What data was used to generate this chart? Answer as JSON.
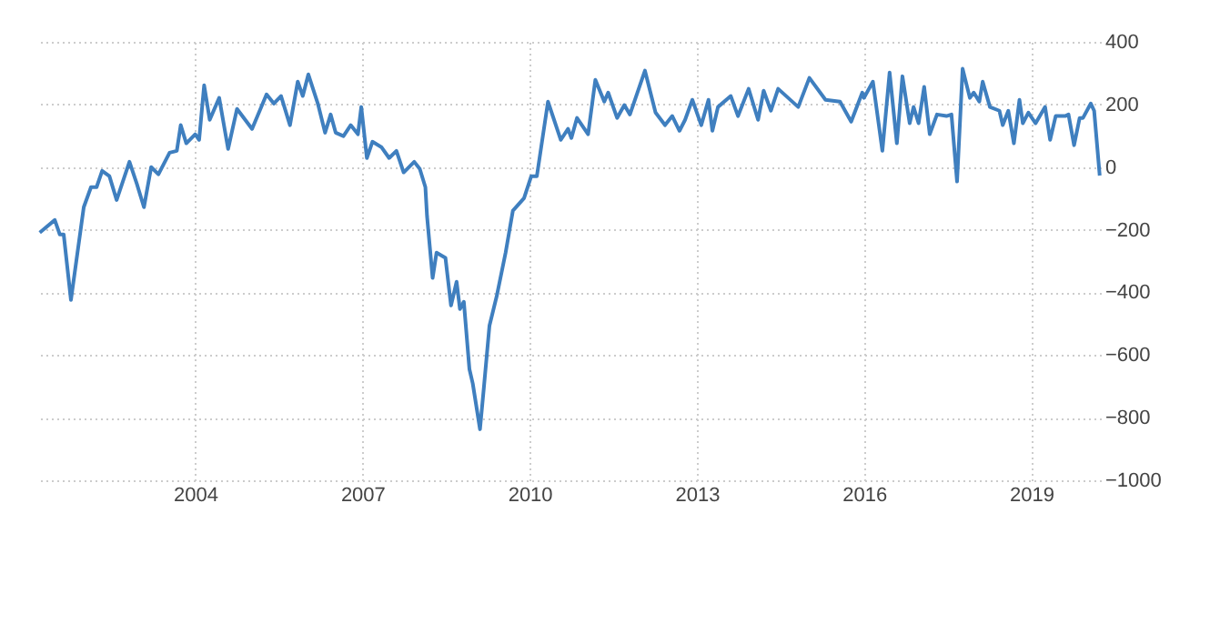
{
  "chart_data": {
    "type": "line",
    "xlim": [
      2001.15,
      2020.25
    ],
    "xticks": [
      2004,
      2007,
      2010,
      2013,
      2016,
      2019
    ],
    "ylim": [
      -1000,
      400
    ],
    "yticks": [
      -1000,
      -800,
      -600,
      -400,
      -200,
      0,
      200,
      400
    ],
    "grid": true,
    "legend": false,
    "marker": "none",
    "line_style": "solid",
    "series": [
      {
        "color": "#3f7fbf",
        "x": [
          2001.21,
          2001.48,
          2001.57,
          2001.64,
          2001.77,
          2002.0,
          2002.13,
          2002.23,
          2002.33,
          2002.46,
          2002.59,
          2002.82,
          2002.95,
          2003.08,
          2003.21,
          2003.34,
          2003.54,
          2003.67,
          2003.74,
          2003.84,
          2004.0,
          2004.07,
          2004.16,
          2004.26,
          2004.43,
          2004.59,
          2004.75,
          2005.02,
          2005.28,
          2005.41,
          2005.54,
          2005.7,
          2005.84,
          2005.93,
          2006.03,
          2006.2,
          2006.33,
          2006.43,
          2006.52,
          2006.66,
          2006.79,
          2006.92,
          2006.98,
          2007.08,
          2007.18,
          2007.34,
          2007.48,
          2007.61,
          2007.74,
          2007.93,
          2008.03,
          2008.13,
          2008.16,
          2008.26,
          2008.33,
          2008.49,
          2008.59,
          2008.69,
          2008.75,
          2008.82,
          2008.92,
          2008.98,
          2009.11,
          2009.18,
          2009.28,
          2009.41,
          2009.57,
          2009.7,
          2009.9,
          2010.03,
          2010.13,
          2010.33,
          2010.56,
          2010.69,
          2010.75,
          2010.85,
          2011.05,
          2011.18,
          2011.34,
          2011.41,
          2011.57,
          2011.7,
          2011.8,
          2012.07,
          2012.26,
          2012.43,
          2012.56,
          2012.69,
          2012.79,
          2012.92,
          2013.08,
          2013.21,
          2013.28,
          2013.38,
          2013.61,
          2013.74,
          2013.93,
          2014.1,
          2014.2,
          2014.33,
          2014.46,
          2014.82,
          2015.02,
          2015.31,
          2015.57,
          2015.77,
          2015.97,
          2016.0,
          2016.16,
          2016.33,
          2016.46,
          2016.59,
          2016.69,
          2016.82,
          2016.89,
          2016.98,
          2017.08,
          2017.18,
          2017.31,
          2017.48,
          2017.57,
          2017.67,
          2017.77,
          2017.9,
          2017.97,
          2018.07,
          2018.13,
          2018.26,
          2018.43,
          2018.49,
          2018.59,
          2018.69,
          2018.79,
          2018.85,
          2018.95,
          2019.08,
          2019.25,
          2019.34,
          2019.44,
          2019.61,
          2019.67,
          2019.77,
          2019.87,
          2019.93,
          2020.07,
          2020.13,
          2020.23
        ],
        "values": [
          -209,
          -169,
          -215,
          -215,
          -424,
          -128,
          -64,
          -64,
          -12,
          -29,
          -105,
          17,
          -52,
          -128,
          0,
          -23,
          46,
          52,
          134,
          76,
          105,
          87,
          261,
          151,
          221,
          58,
          186,
          122,
          232,
          203,
          227,
          134,
          273,
          227,
          296,
          203,
          110,
          168,
          110,
          99,
          134,
          105,
          192,
          29,
          81,
          64,
          29,
          52,
          -17,
          17,
          -6,
          -64,
          -157,
          -354,
          -273,
          -290,
          -442,
          -366,
          -453,
          -430,
          -645,
          -691,
          -837,
          -703,
          -506,
          -412,
          -273,
          -139,
          -99,
          -29,
          -29,
          209,
          87,
          122,
          93,
          157,
          105,
          279,
          209,
          238,
          157,
          198,
          168,
          308,
          174,
          134,
          163,
          116,
          151,
          215,
          134,
          215,
          116,
          192,
          227,
          163,
          250,
          151,
          244,
          180,
          250,
          192,
          285,
          215,
          209,
          145,
          238,
          221,
          273,
          52,
          302,
          76,
          290,
          140,
          192,
          140,
          256,
          105,
          168,
          163,
          168,
          -46,
          314,
          221,
          238,
          209,
          273,
          192,
          180,
          134,
          180,
          76,
          215,
          140,
          174,
          140,
          192,
          87,
          163,
          163,
          168,
          70,
          157,
          157,
          203,
          180,
          -27
        ]
      }
    ]
  }
}
